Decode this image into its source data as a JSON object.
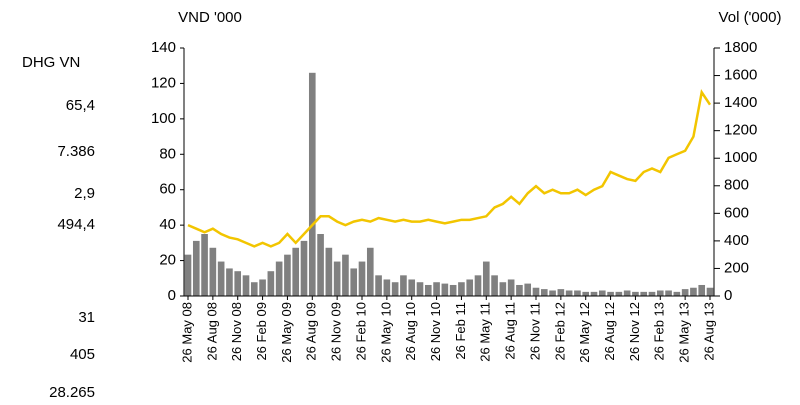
{
  "side_labels": [
    "DHG VN",
    "65,4",
    "7.386",
    "2,9",
    "494,4",
    "31",
    "405",
    "28.265"
  ],
  "chart_data": {
    "type": "bar-line",
    "y_label": "VND '000",
    "y2_label": "Vol ('000)",
    "categories": [
      "26 May 08",
      null,
      null,
      "26 Aug 08",
      null,
      null,
      "26 Nov 08",
      null,
      null,
      "26 Feb 09",
      null,
      null,
      "26 May 09",
      null,
      null,
      "26 Aug 09",
      null,
      null,
      "26 Nov 09",
      null,
      null,
      "26 Feb 10",
      null,
      null,
      "26 May 10",
      null,
      null,
      "26 Aug 10",
      null,
      null,
      "26 Nov 10",
      null,
      null,
      "26 Feb 11",
      null,
      null,
      "26 May 11",
      null,
      null,
      "26 Aug 11",
      null,
      null,
      "26 Nov 11",
      null,
      null,
      "26 Feb 12",
      null,
      null,
      "26 May 12",
      null,
      null,
      "26 Aug 12",
      null,
      null,
      "26 Nov 12",
      null,
      null,
      "26 Feb 13",
      null,
      null,
      "26 May 13",
      null,
      null,
      "26 Aug 13"
    ],
    "series": [
      {
        "color": "#808080",
        "axis": "y2",
        "values": [
          300,
          400,
          450,
          350,
          250,
          200,
          180,
          150,
          100,
          120,
          180,
          250,
          300,
          350,
          400,
          1620,
          450,
          350,
          250,
          300,
          200,
          250,
          350,
          150,
          120,
          100,
          150,
          120,
          100,
          80,
          100,
          90,
          80,
          100,
          120,
          150,
          250,
          150,
          100,
          120,
          80,
          90,
          60,
          50,
          40,
          50,
          40,
          40,
          30,
          30,
          40,
          30,
          30,
          40,
          30,
          30,
          30,
          40,
          40,
          30,
          50,
          60,
          80,
          60
        ]
      },
      {
        "color": "#f2c500",
        "axis": "y",
        "values": [
          40,
          38,
          36,
          38,
          35,
          33,
          32,
          30,
          28,
          30,
          28,
          30,
          35,
          30,
          35,
          40,
          45,
          45,
          42,
          40,
          42,
          43,
          42,
          44,
          43,
          42,
          43,
          42,
          42,
          43,
          42,
          41,
          42,
          43,
          43,
          44,
          45,
          50,
          52,
          56,
          52,
          58,
          62,
          58,
          60,
          58,
          58,
          60,
          57,
          60,
          62,
          70,
          68,
          66,
          65,
          70,
          72,
          70,
          78,
          80,
          82,
          90,
          115,
          108
        ]
      }
    ],
    "ylim": [
      0,
      140
    ],
    "yticks": [
      0,
      20,
      40,
      60,
      80,
      100,
      120,
      140
    ],
    "y2lim": [
      0,
      1800
    ],
    "y2ticks": [
      0,
      200,
      400,
      600,
      800,
      1000,
      1200,
      1400,
      1600,
      1800
    ]
  }
}
